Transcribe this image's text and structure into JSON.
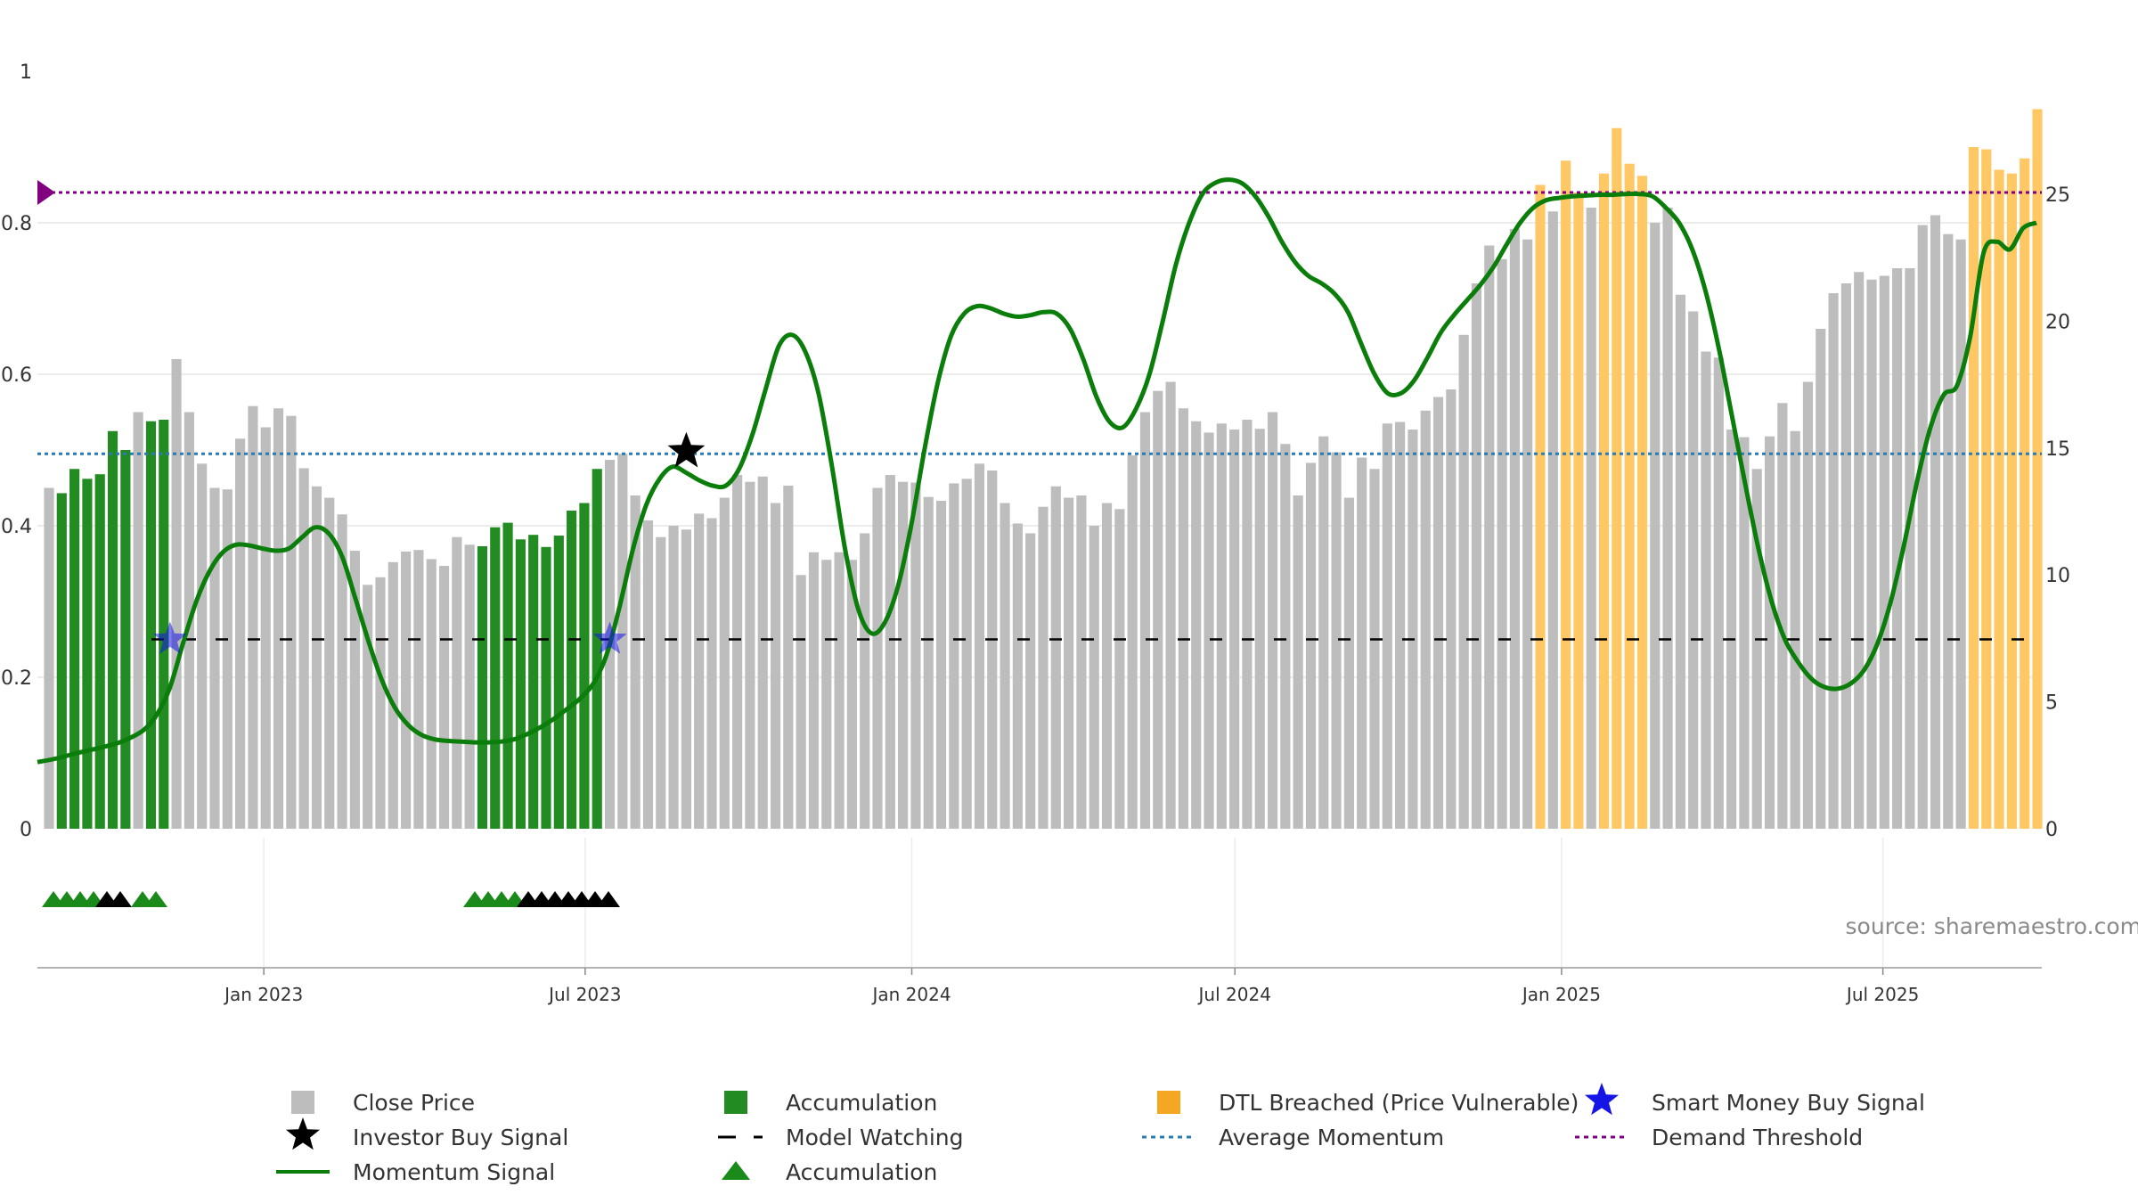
{
  "chart_data": {
    "type": "bar",
    "source_text": "source: sharemaestro.com",
    "left_axis": {
      "ylim": [
        0,
        1
      ],
      "ticks": [
        "0",
        "0.2",
        "0.4",
        "0.6",
        "0.8",
        "1"
      ],
      "tick_values": [
        0,
        0.2,
        0.4,
        0.6,
        0.8,
        1
      ]
    },
    "right_axis": {
      "ylim": [
        0,
        30
      ],
      "ticks": [
        "0",
        "5",
        "10",
        "15",
        "20",
        "25"
      ],
      "tick_values": [
        0,
        5,
        10,
        15,
        20,
        25
      ]
    },
    "x_axis": {
      "start": "2022-09-02",
      "end": "2025-09-26",
      "ticks": [
        {
          "label": "Jan 2023",
          "date": "2023-01-01"
        },
        {
          "label": "Jul 2023",
          "date": "2023-07-01"
        },
        {
          "label": "Jan 2024",
          "date": "2024-01-01"
        },
        {
          "label": "Jul 2024",
          "date": "2024-07-01"
        },
        {
          "label": "Jan 2025",
          "date": "2025-01-01"
        },
        {
          "label": "Jul 2025",
          "date": "2025-07-01"
        }
      ]
    },
    "grid": true,
    "legend_position": "bottom",
    "legend": [
      {
        "label": "Close Price",
        "type": "square",
        "color": "#bdbdbd"
      },
      {
        "label": "Accumulation",
        "type": "square",
        "color": "#228b22"
      },
      {
        "label": "DTL Breached (Price Vulnerable)",
        "type": "square",
        "color": "#f5a623"
      },
      {
        "label": "Smart Money Buy Signal",
        "type": "star",
        "color": "#1515e6"
      },
      {
        "label": "Investor Buy Signal",
        "type": "star",
        "color": "#000000"
      },
      {
        "label": "Model Watching",
        "type": "dash",
        "color": "#000000"
      },
      {
        "label": "Average Momentum",
        "type": "dot",
        "color": "#2a7bb0"
      },
      {
        "label": "Demand Threshold",
        "type": "dot",
        "color": "#800080"
      },
      {
        "label": "Momentum Signal",
        "type": "line",
        "color": "#0a7d0a"
      },
      {
        "label": "Accumulation",
        "type": "triangle",
        "color": "#1a8a1a"
      }
    ],
    "colors": {
      "close": "#bdbdbd",
      "accumulation": "#228b22",
      "dtl": "#ffc864",
      "momentum": "#0a7d0a",
      "average": "#2a7bb0",
      "threshold": "#800080",
      "smart_star": "#1515e6",
      "investor_star": "#000000",
      "triangle_green": "#1a8a1a",
      "triangle_black": "#000000"
    },
    "reference_lines": {
      "model_watching": 0.25,
      "average_momentum": 0.495,
      "demand_threshold": 0.84
    },
    "bars": [
      [
        0.45,
        "g"
      ],
      [
        0.443,
        "a"
      ],
      [
        0.475,
        "a"
      ],
      [
        0.462,
        "a"
      ],
      [
        0.468,
        "a"
      ],
      [
        0.525,
        "a"
      ],
      [
        0.5,
        "a"
      ],
      [
        0.55,
        "g"
      ],
      [
        0.538,
        "a"
      ],
      [
        0.54,
        "a"
      ],
      [
        0.62,
        "g"
      ],
      [
        0.55,
        "g"
      ],
      [
        0.482,
        "g"
      ],
      [
        0.45,
        "g"
      ],
      [
        0.448,
        "g"
      ],
      [
        0.515,
        "g"
      ],
      [
        0.558,
        "g"
      ],
      [
        0.53,
        "g"
      ],
      [
        0.555,
        "g"
      ],
      [
        0.545,
        "g"
      ],
      [
        0.476,
        "g"
      ],
      [
        0.452,
        "g"
      ],
      [
        0.437,
        "g"
      ],
      [
        0.415,
        "g"
      ],
      [
        0.367,
        "g"
      ],
      [
        0.322,
        "g"
      ],
      [
        0.332,
        "g"
      ],
      [
        0.352,
        "g"
      ],
      [
        0.366,
        "g"
      ],
      [
        0.368,
        "g"
      ],
      [
        0.356,
        "g"
      ],
      [
        0.347,
        "g"
      ],
      [
        0.385,
        "g"
      ],
      [
        0.375,
        "g"
      ],
      [
        0.373,
        "a"
      ],
      [
        0.398,
        "a"
      ],
      [
        0.404,
        "a"
      ],
      [
        0.382,
        "a"
      ],
      [
        0.388,
        "a"
      ],
      [
        0.372,
        "a"
      ],
      [
        0.387,
        "a"
      ],
      [
        0.42,
        "a"
      ],
      [
        0.43,
        "a"
      ],
      [
        0.475,
        "a"
      ],
      [
        0.487,
        "g"
      ],
      [
        0.495,
        "g"
      ],
      [
        0.44,
        "g"
      ],
      [
        0.407,
        "g"
      ],
      [
        0.385,
        "g"
      ],
      [
        0.4,
        "g"
      ],
      [
        0.395,
        "g"
      ],
      [
        0.416,
        "g"
      ],
      [
        0.41,
        "g"
      ],
      [
        0.437,
        "g"
      ],
      [
        0.467,
        "g"
      ],
      [
        0.458,
        "g"
      ],
      [
        0.465,
        "g"
      ],
      [
        0.43,
        "g"
      ],
      [
        0.453,
        "g"
      ],
      [
        0.335,
        "g"
      ],
      [
        0.365,
        "g"
      ],
      [
        0.355,
        "g"
      ],
      [
        0.365,
        "g"
      ],
      [
        0.355,
        "g"
      ],
      [
        0.39,
        "g"
      ],
      [
        0.45,
        "g"
      ],
      [
        0.467,
        "g"
      ],
      [
        0.458,
        "g"
      ],
      [
        0.457,
        "g"
      ],
      [
        0.438,
        "g"
      ],
      [
        0.433,
        "g"
      ],
      [
        0.456,
        "g"
      ],
      [
        0.462,
        "g"
      ],
      [
        0.482,
        "g"
      ],
      [
        0.473,
        "g"
      ],
      [
        0.43,
        "g"
      ],
      [
        0.403,
        "g"
      ],
      [
        0.39,
        "g"
      ],
      [
        0.425,
        "g"
      ],
      [
        0.452,
        "g"
      ],
      [
        0.437,
        "g"
      ],
      [
        0.44,
        "g"
      ],
      [
        0.4,
        "g"
      ],
      [
        0.43,
        "g"
      ],
      [
        0.422,
        "g"
      ],
      [
        0.493,
        "g"
      ],
      [
        0.55,
        "g"
      ],
      [
        0.578,
        "g"
      ],
      [
        0.59,
        "g"
      ],
      [
        0.555,
        "g"
      ],
      [
        0.538,
        "g"
      ],
      [
        0.523,
        "g"
      ],
      [
        0.535,
        "g"
      ],
      [
        0.527,
        "g"
      ],
      [
        0.54,
        "g"
      ],
      [
        0.528,
        "g"
      ],
      [
        0.55,
        "g"
      ],
      [
        0.508,
        "g"
      ],
      [
        0.44,
        "g"
      ],
      [
        0.483,
        "g"
      ],
      [
        0.518,
        "g"
      ],
      [
        0.497,
        "g"
      ],
      [
        0.437,
        "g"
      ],
      [
        0.49,
        "g"
      ],
      [
        0.475,
        "g"
      ],
      [
        0.535,
        "g"
      ],
      [
        0.537,
        "g"
      ],
      [
        0.527,
        "g"
      ],
      [
        0.552,
        "g"
      ],
      [
        0.57,
        "g"
      ],
      [
        0.58,
        "g"
      ],
      [
        0.652,
        "g"
      ],
      [
        0.72,
        "g"
      ],
      [
        0.77,
        "g"
      ],
      [
        0.752,
        "g"
      ],
      [
        0.792,
        "g"
      ],
      [
        0.778,
        "g"
      ],
      [
        0.85,
        "d"
      ],
      [
        0.815,
        "g"
      ],
      [
        0.882,
        "d"
      ],
      [
        0.84,
        "d"
      ],
      [
        0.82,
        "g"
      ],
      [
        0.865,
        "d"
      ],
      [
        0.925,
        "d"
      ],
      [
        0.878,
        "d"
      ],
      [
        0.862,
        "d"
      ],
      [
        0.8,
        "g"
      ],
      [
        0.82,
        "g"
      ],
      [
        0.705,
        "g"
      ],
      [
        0.683,
        "g"
      ],
      [
        0.63,
        "g"
      ],
      [
        0.622,
        "g"
      ],
      [
        0.527,
        "g"
      ],
      [
        0.517,
        "g"
      ],
      [
        0.475,
        "g"
      ],
      [
        0.518,
        "g"
      ],
      [
        0.562,
        "g"
      ],
      [
        0.525,
        "g"
      ],
      [
        0.59,
        "g"
      ],
      [
        0.66,
        "g"
      ],
      [
        0.707,
        "g"
      ],
      [
        0.72,
        "g"
      ],
      [
        0.735,
        "g"
      ],
      [
        0.725,
        "g"
      ],
      [
        0.73,
        "g"
      ],
      [
        0.74,
        "g"
      ],
      [
        0.74,
        "g"
      ],
      [
        0.797,
        "g"
      ],
      [
        0.81,
        "g"
      ],
      [
        0.785,
        "g"
      ],
      [
        0.778,
        "g"
      ],
      [
        0.9,
        "d"
      ],
      [
        0.897,
        "d"
      ],
      [
        0.87,
        "d"
      ],
      [
        0.865,
        "d"
      ],
      [
        0.885,
        "d"
      ],
      [
        0.95,
        "d"
      ]
    ],
    "momentum_series": [
      [
        0.0,
        0.088
      ],
      [
        1.5,
        0.093
      ],
      [
        3,
        0.1
      ],
      [
        5,
        0.108
      ],
      [
        6.5,
        0.116
      ],
      [
        8,
        0.13
      ],
      [
        9,
        0.15
      ],
      [
        10,
        0.186
      ],
      [
        11,
        0.245
      ],
      [
        12,
        0.3
      ],
      [
        13,
        0.34
      ],
      [
        14,
        0.365
      ],
      [
        15,
        0.375
      ],
      [
        16,
        0.374
      ],
      [
        17,
        0.37
      ],
      [
        18,
        0.367
      ],
      [
        19,
        0.37
      ],
      [
        20,
        0.385
      ],
      [
        21,
        0.398
      ],
      [
        22,
        0.39
      ],
      [
        23,
        0.36
      ],
      [
        24,
        0.305
      ],
      [
        25,
        0.248
      ],
      [
        26,
        0.197
      ],
      [
        27,
        0.16
      ],
      [
        28,
        0.137
      ],
      [
        29,
        0.124
      ],
      [
        30,
        0.118
      ],
      [
        31,
        0.116
      ],
      [
        32,
        0.115
      ],
      [
        33,
        0.114
      ],
      [
        34,
        0.114
      ],
      [
        35,
        0.115
      ],
      [
        36,
        0.118
      ],
      [
        37,
        0.125
      ],
      [
        38,
        0.134
      ],
      [
        39,
        0.145
      ],
      [
        40,
        0.158
      ],
      [
        41,
        0.172
      ],
      [
        42,
        0.192
      ],
      [
        43,
        0.23
      ],
      [
        44,
        0.295
      ],
      [
        45,
        0.37
      ],
      [
        46,
        0.428
      ],
      [
        47,
        0.462
      ],
      [
        48,
        0.478
      ],
      [
        49,
        0.47
      ],
      [
        50,
        0.46
      ],
      [
        51,
        0.453
      ],
      [
        52,
        0.453
      ],
      [
        53,
        0.475
      ],
      [
        54,
        0.52
      ],
      [
        55,
        0.58
      ],
      [
        56,
        0.637
      ],
      [
        57,
        0.652
      ],
      [
        58,
        0.63
      ],
      [
        59,
        0.575
      ],
      [
        60,
        0.48
      ],
      [
        61,
        0.37
      ],
      [
        62,
        0.29
      ],
      [
        63,
        0.258
      ],
      [
        64,
        0.272
      ],
      [
        65,
        0.32
      ],
      [
        66,
        0.4
      ],
      [
        67,
        0.5
      ],
      [
        68,
        0.588
      ],
      [
        69,
        0.65
      ],
      [
        70,
        0.68
      ],
      [
        71,
        0.69
      ],
      [
        72,
        0.687
      ],
      [
        73,
        0.68
      ],
      [
        74,
        0.676
      ],
      [
        75,
        0.678
      ],
      [
        76,
        0.682
      ],
      [
        77,
        0.68
      ],
      [
        78,
        0.66
      ],
      [
        79,
        0.62
      ],
      [
        80,
        0.57
      ],
      [
        81,
        0.537
      ],
      [
        82,
        0.53
      ],
      [
        83,
        0.555
      ],
      [
        84,
        0.6
      ],
      [
        85,
        0.67
      ],
      [
        86,
        0.745
      ],
      [
        87,
        0.8
      ],
      [
        88,
        0.838
      ],
      [
        89,
        0.853
      ],
      [
        90,
        0.857
      ],
      [
        91,
        0.852
      ],
      [
        92,
        0.835
      ],
      [
        93,
        0.808
      ],
      [
        94,
        0.775
      ],
      [
        95,
        0.748
      ],
      [
        96,
        0.73
      ],
      [
        97,
        0.72
      ],
      [
        98,
        0.706
      ],
      [
        99,
        0.682
      ],
      [
        100,
        0.64
      ],
      [
        101,
        0.6
      ],
      [
        102,
        0.575
      ],
      [
        103,
        0.575
      ],
      [
        104,
        0.592
      ],
      [
        105,
        0.622
      ],
      [
        106,
        0.655
      ],
      [
        107,
        0.678
      ],
      [
        108,
        0.698
      ],
      [
        109,
        0.718
      ],
      [
        110,
        0.742
      ],
      [
        111,
        0.772
      ],
      [
        112,
        0.8
      ],
      [
        113,
        0.82
      ],
      [
        114,
        0.83
      ],
      [
        115,
        0.833
      ],
      [
        116,
        0.835
      ],
      [
        117,
        0.836
      ],
      [
        118,
        0.837
      ],
      [
        119,
        0.837
      ],
      [
        120,
        0.838
      ],
      [
        121,
        0.838
      ],
      [
        122,
        0.835
      ],
      [
        123,
        0.82
      ],
      [
        124,
        0.8
      ],
      [
        125,
        0.765
      ],
      [
        126,
        0.71
      ],
      [
        127,
        0.635
      ],
      [
        128,
        0.545
      ],
      [
        129,
        0.455
      ],
      [
        130,
        0.37
      ],
      [
        131,
        0.3
      ],
      [
        132,
        0.25
      ],
      [
        133,
        0.22
      ],
      [
        134,
        0.198
      ],
      [
        135,
        0.187
      ],
      [
        136,
        0.185
      ],
      [
        137,
        0.192
      ],
      [
        138,
        0.21
      ],
      [
        139,
        0.245
      ],
      [
        140,
        0.3
      ],
      [
        141,
        0.375
      ],
      [
        142,
        0.46
      ],
      [
        143,
        0.53
      ],
      [
        144,
        0.573
      ],
      [
        145,
        0.585
      ],
      [
        146,
        0.65
      ],
      [
        147,
        0.76
      ],
      [
        148,
        0.775
      ],
      [
        149,
        0.765
      ],
      [
        150,
        0.793
      ],
      [
        151,
        0.8
      ]
    ],
    "smart_money_stars": [
      [
        9.5,
        0.25
      ],
      [
        44,
        0.25
      ]
    ],
    "investor_star": [
      50,
      0.498
    ],
    "triangles_group1": [
      "g",
      "g",
      "g",
      "g",
      "b",
      "b",
      "g",
      "g"
    ],
    "triangles_group2": [
      "g",
      "g",
      "g",
      "g",
      "b",
      "b",
      "b",
      "b",
      "b",
      "b",
      "b"
    ]
  }
}
